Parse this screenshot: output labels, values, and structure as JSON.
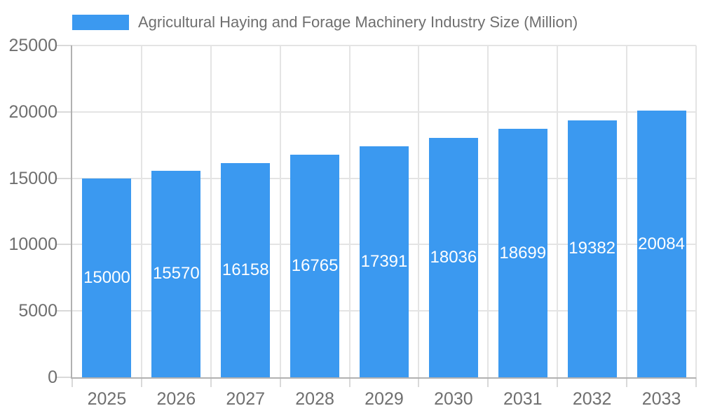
{
  "legend": {
    "label": "Agricultural Haying and Forage Machinery Industry Size (Million)",
    "swatch_color": "#3B99F0"
  },
  "chart_data": {
    "type": "bar",
    "title": "Agricultural Haying and Forage Machinery Industry Size (Million)",
    "categories": [
      "2025",
      "2026",
      "2027",
      "2028",
      "2029",
      "2030",
      "2031",
      "2032",
      "2033"
    ],
    "values": [
      15000,
      15570,
      16158,
      16765,
      17391,
      18036,
      18699,
      19382,
      20084
    ],
    "value_labels": [
      "15000",
      "15570",
      "16158",
      "16765",
      "17391",
      "18036",
      "18699",
      "19382",
      "20084"
    ],
    "xlabel": "",
    "ylabel": "",
    "ylim": [
      0,
      25000
    ],
    "yticks": [
      0,
      5000,
      10000,
      15000,
      20000,
      25000
    ],
    "ytick_labels": [
      "0",
      "5000",
      "10000",
      "15000",
      "20000",
      "25000"
    ],
    "grid": true,
    "legend_position": "top-left",
    "bar_color": "#3B99F0",
    "value_label_color": "#ffffff",
    "axis_color": "#b1b1b1",
    "grid_color": "#e4e4e4",
    "tick_color": "#d9d9d9",
    "label_color": "#6f6f6f"
  }
}
